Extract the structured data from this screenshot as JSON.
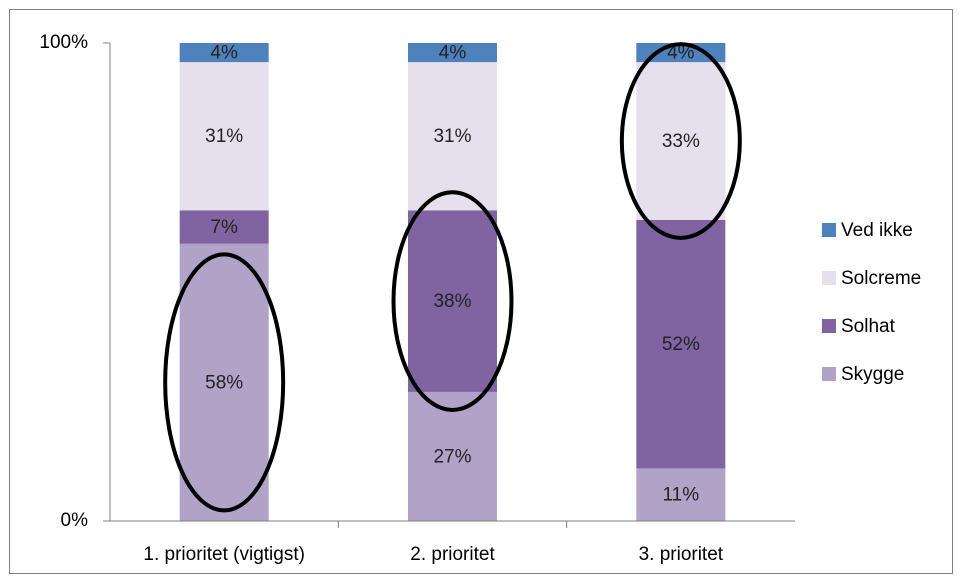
{
  "chart_data": {
    "type": "bar",
    "stacked": true,
    "percent": true,
    "title": "",
    "xlabel": "",
    "ylabel": "",
    "ylim": [
      0,
      100
    ],
    "y_ticks": [
      "0%",
      "100%"
    ],
    "categories": [
      "1. prioritet (vigtigst)",
      "2. prioritet",
      "3. prioritet"
    ],
    "series": [
      {
        "name": "Skygge",
        "values": [
          58,
          27,
          11
        ],
        "labels": [
          "58%",
          "27%",
          "11%"
        ],
        "color": "#b1a3c8"
      },
      {
        "name": "Solhat",
        "values": [
          7,
          38,
          52
        ],
        "labels": [
          "7%",
          "38%",
          "52%"
        ],
        "color": "#8064a2"
      },
      {
        "name": "Solcreme",
        "values": [
          31,
          31,
          33
        ],
        "labels": [
          "31%",
          "31%",
          "33%"
        ],
        "color": "#e6e0ec"
      },
      {
        "name": "Ved ikke",
        "values": [
          4,
          4,
          4
        ],
        "labels": [
          "4%",
          "4%",
          "4%"
        ],
        "color": "#4f81bd"
      }
    ],
    "legend_order": [
      "Ved ikke",
      "Solcreme",
      "Solhat",
      "Skygge"
    ],
    "legend_position": "right",
    "grid": false,
    "highlights": [
      {
        "category": "1. prioritet (vigtigst)",
        "series": "Skygge"
      },
      {
        "category": "2. prioritet",
        "series": "Solhat"
      },
      {
        "category": "3. prioritet",
        "series": "Solcreme"
      }
    ]
  }
}
